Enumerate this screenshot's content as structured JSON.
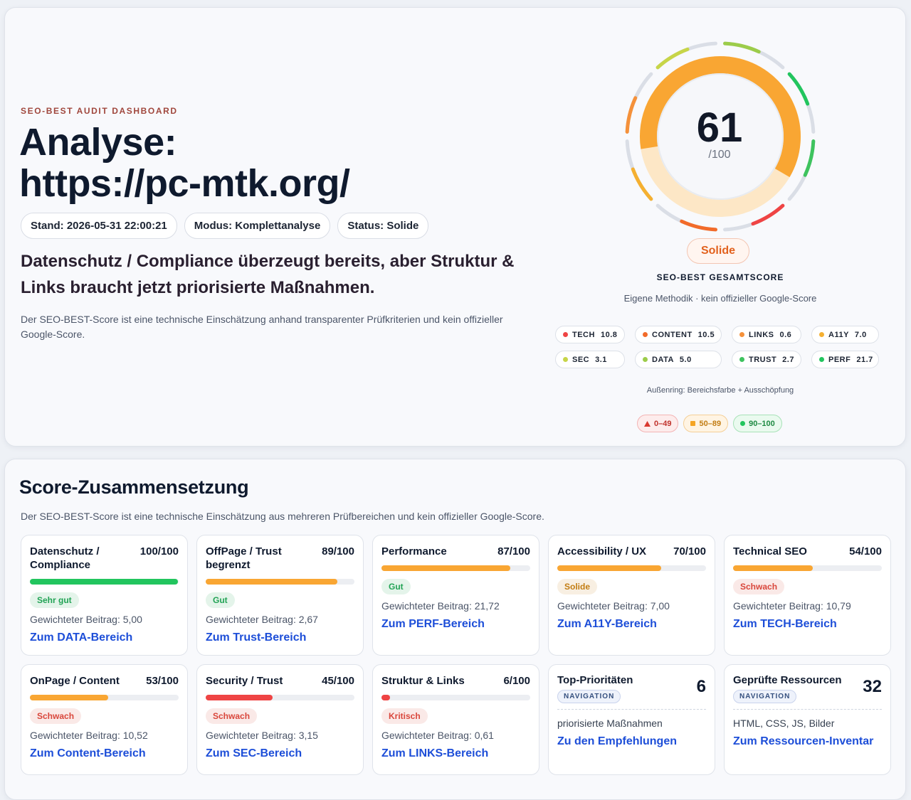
{
  "header": {
    "eyebrow": "SEO-BEST AUDIT DASHBOARD",
    "title_line1": "Analyse:",
    "title_line2": "https://pc-mtk.org/",
    "chips": [
      "Stand: 2026-05-31 22:00:21",
      "Modus: Komplettanalyse",
      "Status: Solide"
    ],
    "headline": "Datenschutz / Compliance überzeugt bereits, aber Struktur & Links braucht jetzt priorisierte Maßnahmen.",
    "note": "Der SEO-BEST-Score ist eine technische Einschätzung anhand transparenter Prüfkriterien und kein offizieller Google-Score."
  },
  "gauge": {
    "score": 61,
    "scale": "/100",
    "color": "#f9a633",
    "status": "Solide",
    "label": "SEO-BEST GESAMTSCORE",
    "sublabel": "Eigene Methodik · kein offizieller Google-Score",
    "areas": [
      {
        "name": "TECH",
        "value": "10.8",
        "color": "#ef4444"
      },
      {
        "name": "CONTENT",
        "value": "10.5",
        "color": "#f26b2a"
      },
      {
        "name": "LINKS",
        "value": "0.6",
        "color": "#f5913a"
      },
      {
        "name": "A11Y",
        "value": "7.0",
        "color": "#f5b031"
      },
      {
        "name": "SEC",
        "value": "3.1",
        "color": "#c7d548"
      },
      {
        "name": "DATA",
        "value": "5.0",
        "color": "#9ccc4a"
      },
      {
        "name": "TRUST",
        "value": "2.7",
        "color": "#3ec35e"
      },
      {
        "name": "PERF",
        "value": "21.7",
        "color": "#22c55e"
      }
    ],
    "ring_note": "Außenring: Bereichsfarbe + Ausschöpfung",
    "legend": [
      "0–49",
      "50–89",
      "90–100"
    ]
  },
  "section": {
    "title": "Score-Zusammensetzung",
    "note": "Der SEO-BEST-Score ist eine technische Einschätzung aus mehreren Prüfbereichen und kein offizieller Google-Score.",
    "cards": [
      {
        "title": "Datenschutz / Compliance",
        "score": {
          "value": 100,
          "label": "100/100"
        },
        "color": "#22c55e",
        "badge": "Sehr gut",
        "badge_color": "#22a355",
        "contribution": "Gewichteter Beitrag: 5,00",
        "link": "Zum DATA-Bereich"
      },
      {
        "title": "OffPage / Trust begrenzt",
        "score": {
          "value": 89,
          "label": "89/100"
        },
        "color": "#f9a633",
        "badge": "Gut",
        "badge_color": "#22a355",
        "contribution": "Gewichteter Beitrag: 2,67",
        "link": "Zum Trust-Bereich"
      },
      {
        "title": "Performance",
        "score": {
          "value": 87,
          "label": "87/100"
        },
        "color": "#f9a633",
        "badge": "Gut",
        "badge_color": "#22a355",
        "contribution": "Gewichteter Beitrag: 21,72",
        "link": "Zum PERF-Bereich"
      },
      {
        "title": "Accessibility / UX",
        "score": {
          "value": 70,
          "label": "70/100"
        },
        "color": "#f9a633",
        "badge": "Solide",
        "badge_color": "#c27c12",
        "contribution": "Gewichteter Beitrag: 7,00",
        "link": "Zum A11Y-Bereich"
      },
      {
        "title": "Technical SEO",
        "score": {
          "value": 54,
          "label": "54/100"
        },
        "color": "#f9a633",
        "badge": "Schwach",
        "badge_color": "#d9463b",
        "contribution": "Gewichteter Beitrag: 10,79",
        "link": "Zum TECH-Bereich"
      },
      {
        "title": "OnPage / Content",
        "score": {
          "value": 53,
          "label": "53/100"
        },
        "color": "#f9a633",
        "badge": "Schwach",
        "badge_color": "#d9463b",
        "contribution": "Gewichteter Beitrag: 10,52",
        "link": "Zum Content-Bereich"
      },
      {
        "title": "Security / Trust",
        "score": {
          "value": 45,
          "label": "45/100"
        },
        "color": "#ef4444",
        "badge": "Schwach",
        "badge_color": "#d9463b",
        "contribution": "Gewichteter Beitrag: 3,15",
        "link": "Zum SEC-Bereich"
      },
      {
        "title": "Struktur & Links",
        "score": {
          "value": 6,
          "label": "6/100"
        },
        "color": "#ef4444",
        "badge": "Kritisch",
        "badge_color": "#d9463b",
        "contribution": "Gewichteter Beitrag: 0,61",
        "link": "Zum LINKS-Bereich"
      }
    ],
    "nav_cards": [
      {
        "title": "Top-Prioritäten",
        "count": 6,
        "tag": "NAVIGATION",
        "text": "priorisierte Maßnahmen",
        "link": "Zu den Empfehlungen"
      },
      {
        "title": "Geprüfte Ressourcen",
        "count": 32,
        "tag": "NAVIGATION",
        "text": "HTML, CSS, JS, Bilder",
        "link": "Zum Ressourcen-Inventar"
      }
    ]
  }
}
